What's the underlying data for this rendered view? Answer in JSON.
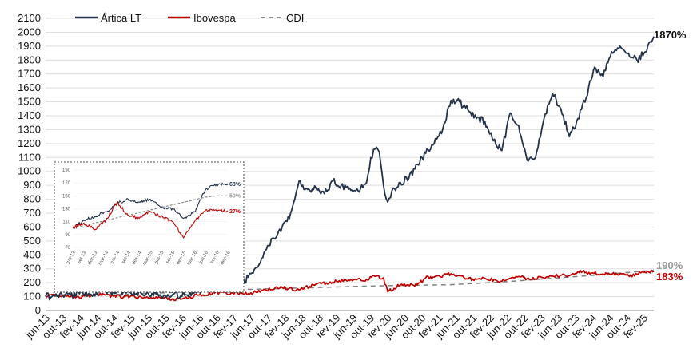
{
  "chart_data": {
    "type": "line",
    "title": "",
    "xlabel": "",
    "ylabel": "",
    "ylim": [
      0,
      2100
    ],
    "yticks": [
      0,
      100,
      200,
      300,
      400,
      500,
      600,
      700,
      800,
      900,
      1000,
      1100,
      1200,
      1300,
      1400,
      1500,
      1600,
      1700,
      1800,
      1900,
      2000,
      2100
    ],
    "xlim": [
      "2013-06",
      "2025-06"
    ],
    "xticks": [
      "jun-13",
      "out-13",
      "fev-14",
      "jun-14",
      "out-14",
      "fev-15",
      "jun-15",
      "out-15",
      "fev-16",
      "jun-16",
      "out-16",
      "fev-17",
      "jun-17",
      "out-17",
      "fev-18",
      "jun-18",
      "out-18",
      "fev-19",
      "jun-19",
      "out-19",
      "fev-20",
      "jun-20",
      "out-20",
      "fev-21",
      "jun-21",
      "out-21",
      "fev-22",
      "jun-22",
      "out-22",
      "fev-23",
      "jun-23",
      "out-23",
      "fev-24",
      "jun-24",
      "out-24",
      "fev-25"
    ],
    "grid": "horizontal",
    "legend": "top-left",
    "series": [
      {
        "name": "Ártica LT",
        "color": "#24334a",
        "end_label": "1870%",
        "x": [
          "2013-06",
          "2013-10",
          "2014-02",
          "2014-06",
          "2014-10",
          "2015-02",
          "2015-06",
          "2015-10",
          "2016-02",
          "2016-06",
          "2016-10",
          "2017-02",
          "2017-04",
          "2017-06",
          "2017-08",
          "2017-10",
          "2017-12",
          "2018-02",
          "2018-04",
          "2018-05",
          "2018-06",
          "2018-08",
          "2018-10",
          "2018-12",
          "2019-02",
          "2019-04",
          "2019-06",
          "2019-08",
          "2019-10",
          "2019-11",
          "2019-12",
          "2020-01",
          "2020-02",
          "2020-03",
          "2020-04",
          "2020-06",
          "2020-08",
          "2020-10",
          "2020-12",
          "2021-02",
          "2021-04",
          "2021-06",
          "2021-08",
          "2021-10",
          "2021-12",
          "2022-02",
          "2022-04",
          "2022-06",
          "2022-08",
          "2022-10",
          "2022-12",
          "2023-02",
          "2023-04",
          "2023-06",
          "2023-08",
          "2023-10",
          "2023-12",
          "2024-02",
          "2024-04",
          "2024-06",
          "2024-08",
          "2024-10",
          "2024-12",
          "2025-02",
          "2025-04",
          "2025-06"
        ],
        "y": [
          100,
          110,
          120,
          128,
          135,
          132,
          130,
          112,
          105,
          150,
          165,
          170,
          185,
          240,
          310,
          430,
          520,
          600,
          700,
          800,
          930,
          870,
          880,
          840,
          930,
          900,
          880,
          860,
          920,
          1100,
          1160,
          1140,
          900,
          780,
          860,
          920,
          950,
          1050,
          1130,
          1200,
          1300,
          1510,
          1500,
          1440,
          1380,
          1360,
          1220,
          1150,
          1420,
          1330,
          1080,
          1100,
          1380,
          1560,
          1450,
          1250,
          1380,
          1530,
          1750,
          1680,
          1860,
          1900,
          1850,
          1800,
          1860,
          1970
        ]
      },
      {
        "name": "Ibovespa",
        "color": "#c00000",
        "end_label": "183%",
        "x": [
          "2013-06",
          "2013-10",
          "2014-02",
          "2014-06",
          "2014-10",
          "2015-02",
          "2015-06",
          "2015-10",
          "2016-02",
          "2016-06",
          "2016-10",
          "2017-02",
          "2017-06",
          "2017-10",
          "2018-02",
          "2018-06",
          "2018-10",
          "2019-02",
          "2019-06",
          "2019-10",
          "2019-12",
          "2020-02",
          "2020-03",
          "2020-06",
          "2020-10",
          "2020-12",
          "2021-02",
          "2021-06",
          "2021-10",
          "2021-12",
          "2022-02",
          "2022-06",
          "2022-10",
          "2022-12",
          "2023-02",
          "2023-06",
          "2023-10",
          "2023-12",
          "2024-02",
          "2024-06",
          "2024-10",
          "2024-12",
          "2025-02",
          "2025-06"
        ],
        "y": [
          100,
          108,
          92,
          115,
          104,
          100,
          98,
          88,
          80,
          110,
          125,
          128,
          122,
          150,
          165,
          148,
          190,
          205,
          215,
          225,
          245,
          235,
          135,
          185,
          185,
          235,
          240,
          265,
          225,
          225,
          232,
          210,
          245,
          230,
          228,
          248,
          250,
          280,
          275,
          262,
          265,
          250,
          262,
          283
        ]
      },
      {
        "name": "CDI",
        "color": "#808080",
        "dashed": true,
        "end_label": "190%",
        "x": [
          "2013-06",
          "2014-06",
          "2015-06",
          "2016-06",
          "2017-06",
          "2018-06",
          "2019-06",
          "2020-06",
          "2021-06",
          "2022-06",
          "2023-06",
          "2024-06",
          "2025-06"
        ],
        "y": [
          100,
          110,
          122,
          138,
          152,
          162,
          172,
          180,
          186,
          205,
          232,
          258,
          290
        ]
      }
    ],
    "inset": {
      "xticks": [
        "jun-13",
        "set-13",
        "dez-13",
        "mar-14",
        "jun-14",
        "set-14",
        "dez-14",
        "mar-15",
        "jun-15",
        "set-15",
        "dez-15",
        "mar-16",
        "jun-16",
        "set-16",
        "dez-16"
      ],
      "yticks": [
        70,
        90,
        110,
        130,
        150,
        170,
        190
      ],
      "ylim": [
        70,
        190
      ],
      "end_labels": [
        "68%",
        "50%",
        "27%"
      ],
      "series": [
        {
          "color": "#24334a",
          "y": [
            100,
            112,
            118,
            125,
            138,
            145,
            140,
            145,
            132,
            130,
            115,
            125,
            160,
            168,
            168
          ]
        },
        {
          "color": "#808080",
          "dashed": true,
          "y": [
            100,
            104,
            108,
            112,
            116,
            120,
            124,
            128,
            132,
            136,
            140,
            144,
            148,
            150,
            150
          ]
        },
        {
          "color": "#c00000",
          "y": [
            100,
            108,
            98,
            112,
            140,
            120,
            115,
            126,
            118,
            110,
            85,
            110,
            128,
            127,
            127
          ]
        }
      ]
    }
  }
}
